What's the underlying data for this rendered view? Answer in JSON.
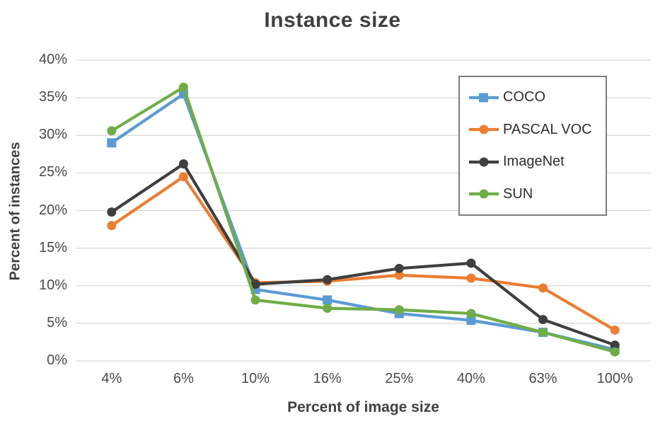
{
  "chart_data": {
    "type": "line",
    "title": "Instance size",
    "xlabel": "Percent of image size",
    "ylabel": "Percent of instances",
    "categories": [
      "4%",
      "6%",
      "10%",
      "16%",
      "25%",
      "40%",
      "63%",
      "100%"
    ],
    "series": [
      {
        "name": "COCO",
        "color": "#5B9BD5",
        "marker": "square",
        "values": [
          29.0,
          35.5,
          9.5,
          8.1,
          6.3,
          5.4,
          3.8,
          1.5
        ]
      },
      {
        "name": "PASCAL VOC",
        "color": "#ED7D31",
        "marker": "circle",
        "values": [
          18.0,
          24.5,
          10.4,
          10.6,
          11.4,
          11.0,
          9.7,
          4.1
        ]
      },
      {
        "name": "ImageNet",
        "color": "#3f3f3f",
        "marker": "circle",
        "values": [
          19.8,
          26.2,
          10.2,
          10.8,
          12.3,
          13.0,
          5.5,
          2.1
        ]
      },
      {
        "name": "SUN",
        "color": "#70AD47",
        "marker": "circle",
        "values": [
          30.6,
          36.4,
          8.1,
          7.0,
          6.8,
          6.3,
          3.8,
          1.2
        ]
      }
    ],
    "y_ticks": [
      40,
      35,
      30,
      25,
      20,
      15,
      10,
      5,
      0
    ],
    "y_tick_suffix": "%",
    "ylim": [
      0,
      40
    ],
    "grid": true,
    "gridline_color": "#d9d9d9",
    "legend_position": "upper-right-inside",
    "legend_border_color": "#7f7f7f"
  }
}
